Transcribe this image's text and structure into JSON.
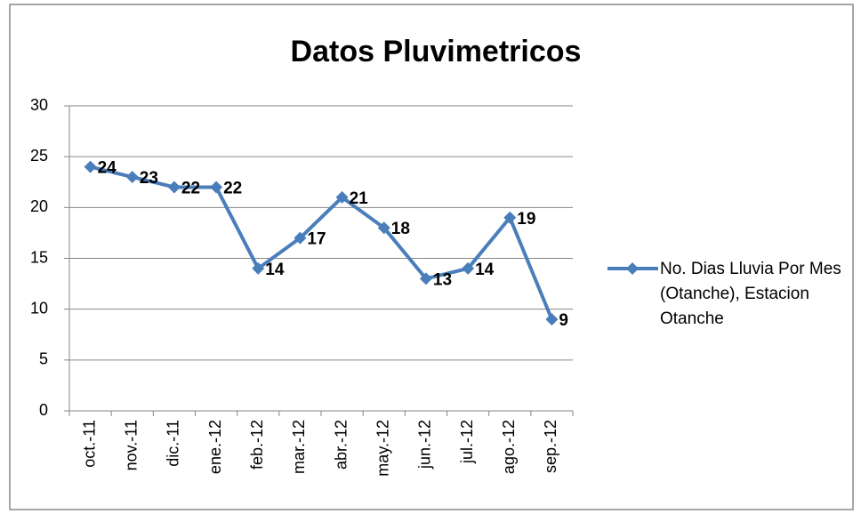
{
  "chart_data": {
    "type": "line",
    "title": "Datos Pluvimetricos",
    "categories": [
      "oct.-11",
      "nov.-11",
      "dic.-11",
      "ene.-12",
      "feb.-12",
      "mar.-12",
      "abr.-12",
      "may.-12",
      "jun.-12",
      "jul.-12",
      "ago.-12",
      "sep.-12"
    ],
    "series": [
      {
        "name": "No. Dias Lluvia Por Mes (Otanche), Estacion Otanche",
        "color": "#4a7ebb",
        "values": [
          24,
          23,
          22,
          22,
          14,
          17,
          21,
          18,
          13,
          14,
          19,
          9
        ]
      }
    ],
    "ylim": [
      0,
      30
    ],
    "yticks": [
      0,
      5,
      10,
      15,
      20,
      25,
      30
    ],
    "grid": true,
    "legend": "right"
  }
}
